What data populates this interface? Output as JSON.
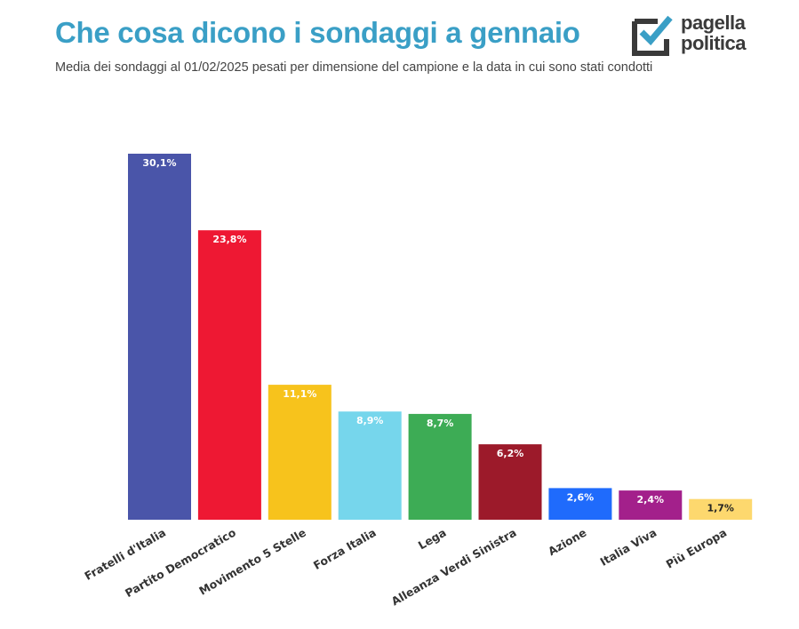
{
  "header": {
    "title": "Che cosa dicono i sondaggi a gennaio",
    "subtitle": "Media dei sondaggi al 01/02/2025 pesati per dimensione del campione e la data in cui sono stati condotti"
  },
  "brand": {
    "line1": "pagella",
    "line2": "politica",
    "icon": "checkbox-check-icon",
    "mark_color": "#3a3a3a",
    "check_color": "#3a9fc6"
  },
  "chart_data": {
    "type": "bar",
    "title": "Che cosa dicono i sondaggi a gennaio",
    "subtitle": "Media dei sondaggi al 01/02/2025 pesati per dimensione del campione e la data in cui sono stati condotti",
    "categories": [
      "Fratelli d'Italia",
      "Partito Democratico",
      "Movimento 5 Stelle",
      "Forza Italia",
      "Lega",
      "Alleanza Verdi Sinistra",
      "Azione",
      "Italia Viva",
      "Più Europa"
    ],
    "values": [
      30.1,
      23.8,
      11.1,
      8.9,
      8.7,
      6.2,
      2.6,
      2.4,
      1.7
    ],
    "value_labels": [
      "30,1%",
      "23,8%",
      "11,1%",
      "8,9%",
      "8,7%",
      "6,2%",
      "2,6%",
      "2,4%",
      "1,7%"
    ],
    "colors": [
      "#4a55a9",
      "#ee1833",
      "#f7c31c",
      "#76d6ec",
      "#3dac55",
      "#9c1a2a",
      "#1f6bfc",
      "#a3208b",
      "#fdd86e"
    ],
    "label_colors": [
      "#ffffff",
      "#ffffff",
      "#ffffff",
      "#ffffff",
      "#ffffff",
      "#ffffff",
      "#ffffff",
      "#ffffff",
      "#222222"
    ],
    "xlabel": "",
    "ylabel": "",
    "ylim": [
      0,
      30.1
    ],
    "grid": false,
    "legend": "none"
  }
}
